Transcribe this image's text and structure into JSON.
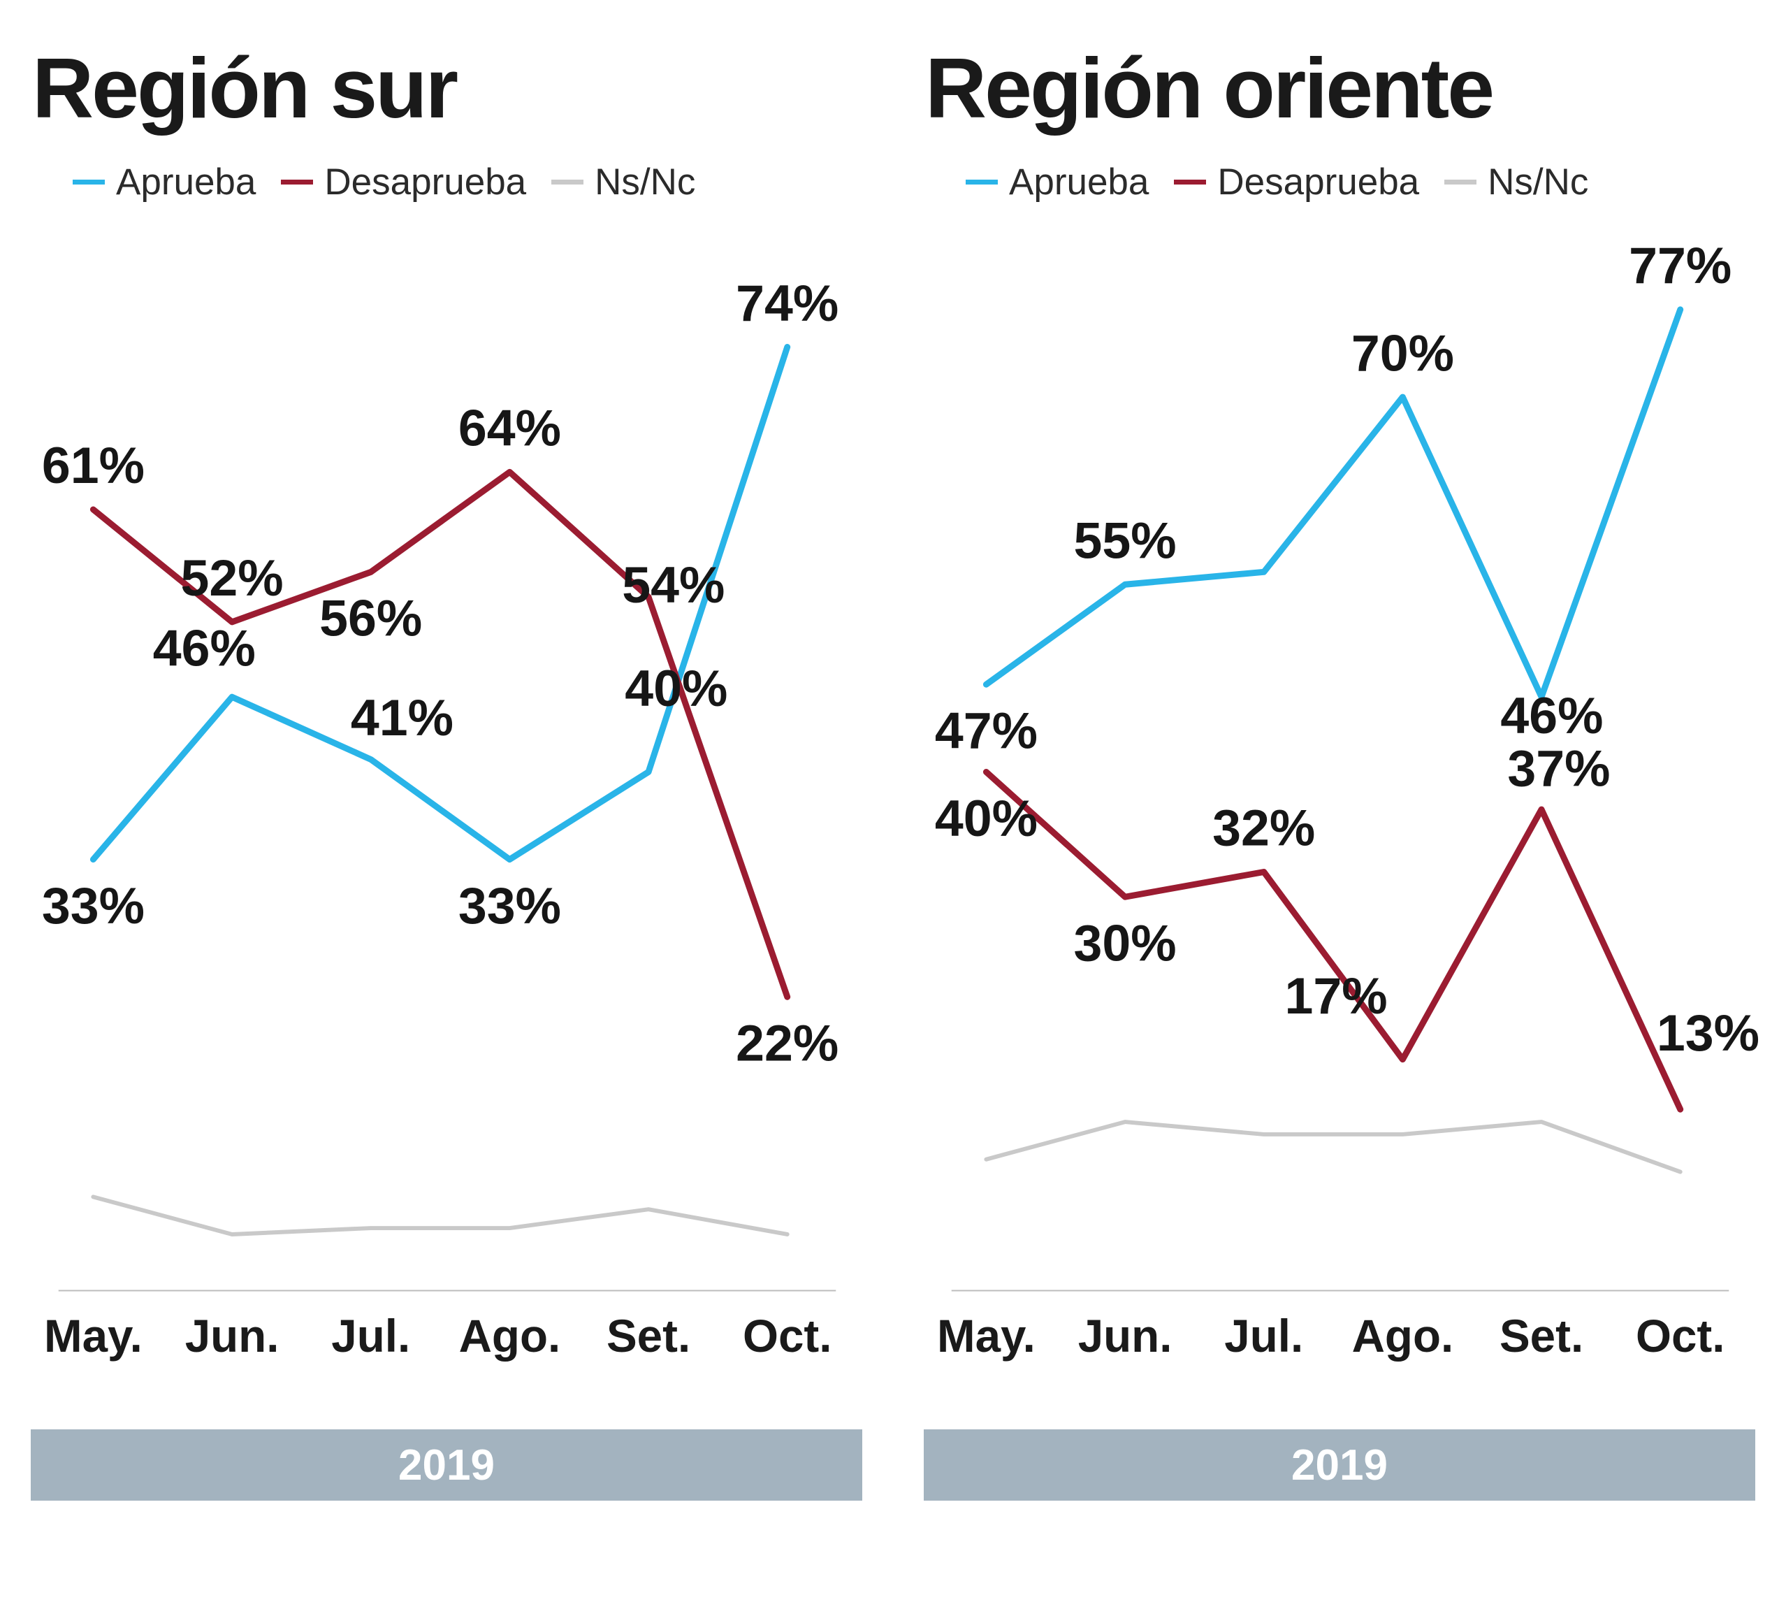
{
  "page": {
    "background": "#ffffff",
    "text_color": "#1a1a1a"
  },
  "charts": [
    {
      "title": "Región sur",
      "year_band": "2019",
      "band_color": "#a3b3bf",
      "legend": [
        {
          "label": "Aprueba",
          "color": "#29b4e8"
        },
        {
          "label": "Desaprueba",
          "color": "#9b1c31"
        },
        {
          "label": "Ns/Nc",
          "color": "#c9c9c9"
        }
      ],
      "chart_data": {
        "type": "line",
        "title": "Región sur",
        "categories": [
          "May.",
          "Jun.",
          "Jul.",
          "Ago.",
          "Set.",
          "Oct."
        ],
        "x_axis_note": "2019",
        "ylim": [
          0,
          85
        ],
        "grid": false,
        "legend_position": "top",
        "series": [
          {
            "name": "Aprueba",
            "color": "#29b4e8",
            "line_width": 9,
            "values": [
              33,
              46,
              41,
              33,
              40,
              74
            ],
            "labels": [
              "33%",
              "46%",
              "41%",
              "33%",
              "40%",
              "74%"
            ],
            "label_pos": [
              "below",
              [
                -40,
                -45
              ],
              [
                45,
                -35
              ],
              "below",
              [
                40,
                -95
              ],
              "above"
            ]
          },
          {
            "name": "Desaprueba",
            "color": "#9b1c31",
            "line_width": 9,
            "values": [
              61,
              52,
              56,
              64,
              54,
              22
            ],
            "labels": [
              "61%",
              "52%",
              "56%",
              "64%",
              "54%",
              "22%"
            ],
            "label_pos": [
              "above",
              "above",
              "below",
              "above",
              [
                36,
                8
              ],
              "below"
            ]
          },
          {
            "name": "Ns/Nc",
            "color": "#c9c9c9",
            "line_width": 6,
            "values": [
              6,
              3,
              3.5,
              3.5,
              5,
              3
            ],
            "labels": [],
            "label_pos": []
          }
        ]
      }
    },
    {
      "title": "Región oriente",
      "year_band": "2019",
      "band_color": "#a3b3bf",
      "legend": [
        {
          "label": "Aprueba",
          "color": "#29b4e8"
        },
        {
          "label": "Desaprueba",
          "color": "#9b1c31"
        },
        {
          "label": "Ns/Nc",
          "color": "#c9c9c9"
        }
      ],
      "chart_data": {
        "type": "line",
        "title": "Región oriente",
        "categories": [
          "May.",
          "Jun.",
          "Jul.",
          "Ago.",
          "Set.",
          "Oct."
        ],
        "x_axis_note": "2019",
        "ylim": [
          0,
          85
        ],
        "grid": false,
        "legend_position": "top",
        "series": [
          {
            "name": "Aprueba",
            "color": "#29b4e8",
            "line_width": 9,
            "values": [
              47,
              55,
              56,
              70,
              46,
              77
            ],
            "labels": [
              "47%",
              "55%",
              null,
              "70%",
              "46%",
              "77%"
            ],
            "label_pos": [
              "below",
              "above",
              null,
              "above",
              [
                15,
                52
              ],
              "above"
            ]
          },
          {
            "name": "Desaprueba",
            "color": "#9b1c31",
            "line_width": 9,
            "values": [
              40,
              30,
              32,
              17,
              37,
              13
            ],
            "labels": [
              "40%",
              "30%",
              "32%",
              "17%",
              "37%",
              "13%"
            ],
            "label_pos": [
              "below",
              "below",
              "above",
              [
                -96,
                -66
              ],
              [
                25,
                -34
              ],
              [
                40,
                -85
              ]
            ]
          },
          {
            "name": "Ns/Nc",
            "color": "#c9c9c9",
            "line_width": 6,
            "values": [
              9,
              12,
              11,
              11,
              12,
              8
            ],
            "labels": [],
            "label_pos": []
          }
        ]
      }
    }
  ]
}
